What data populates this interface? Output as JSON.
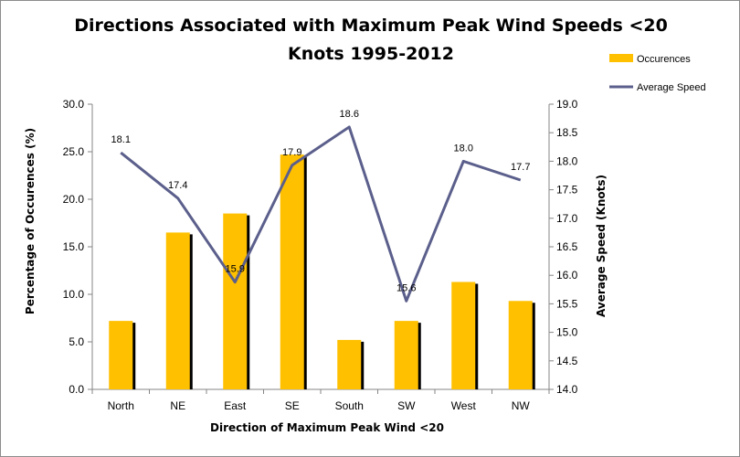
{
  "chart_data": {
    "type": "bar",
    "title_line1": "Directions Associated with Maximum  Peak Wind Speeds <20",
    "title_line2": "Knots 1995-2012",
    "xlabel": "Direction of Maximum Peak Wind <20",
    "ylabel": "Percentage of Occurences (%)",
    "y2label": "Average Speed (Knots)",
    "categories": [
      "North",
      "NE",
      "East",
      "SE",
      "South",
      "SW",
      "West",
      "NW"
    ],
    "ylim": [
      0,
      30
    ],
    "y_ticks": [
      "0.0",
      "5.0",
      "10.0",
      "15.0",
      "20.0",
      "25.0",
      "30.0"
    ],
    "y2lim": [
      14,
      19
    ],
    "y2_ticks": [
      "14.0",
      "14.5",
      "15.0",
      "15.5",
      "16.0",
      "16.5",
      "17.0",
      "17.5",
      "18.0",
      "18.5",
      "19.0"
    ],
    "legend_position": "top-right",
    "grid": false,
    "series": [
      {
        "name": "Occurences",
        "type": "bar",
        "axis": "left",
        "color": "#FFC000",
        "values": [
          7.2,
          16.5,
          18.5,
          24.7,
          5.2,
          7.2,
          11.3,
          9.3
        ]
      },
      {
        "name": "Average Speed",
        "type": "line",
        "axis": "right",
        "color": "#5B5F8B",
        "values": [
          18.15,
          17.35,
          15.88,
          17.93,
          18.6,
          15.55,
          18.0,
          17.67
        ],
        "labels": [
          "18.1",
          "17.4",
          "15.9",
          "17.9",
          "18.6",
          "15.6",
          "18.0",
          "17.7"
        ]
      }
    ]
  }
}
